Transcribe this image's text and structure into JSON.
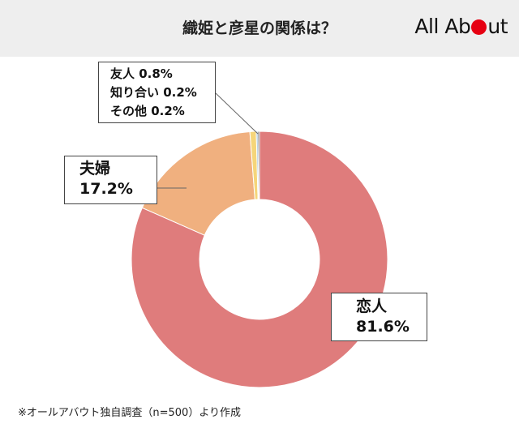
{
  "header": {
    "title": "織姫と彦星の関係は？",
    "logo_text_pre": "All Ab",
    "logo_text_post": "ut"
  },
  "chart_data": {
    "type": "pie",
    "subtype": "donut",
    "title": "織姫と彦星の関係は？",
    "categories": [
      "恋人",
      "夫婦",
      "友人",
      "知り合い",
      "その他"
    ],
    "values": [
      81.6,
      17.2,
      0.8,
      0.2,
      0.2
    ],
    "value_labels": [
      "81.6%",
      "17.2%",
      "0.8%",
      "0.2%",
      "0.2%"
    ],
    "colors": [
      "#df7c7c",
      "#f0b07f",
      "#f5d57a",
      "#8eb6d8",
      "#5c5c5c"
    ],
    "unit": "%"
  },
  "labels": {
    "koibito_name": "恋人",
    "koibito_value": "81.6%",
    "fufu_name": "夫婦",
    "fufu_value": "17.2%",
    "yujin": "友人 0.8%",
    "shiriai": "知り合い 0.2%",
    "sonota": "その他 0.2%"
  },
  "footnote": "※オールアバウト独自調査（n=500）より作成"
}
